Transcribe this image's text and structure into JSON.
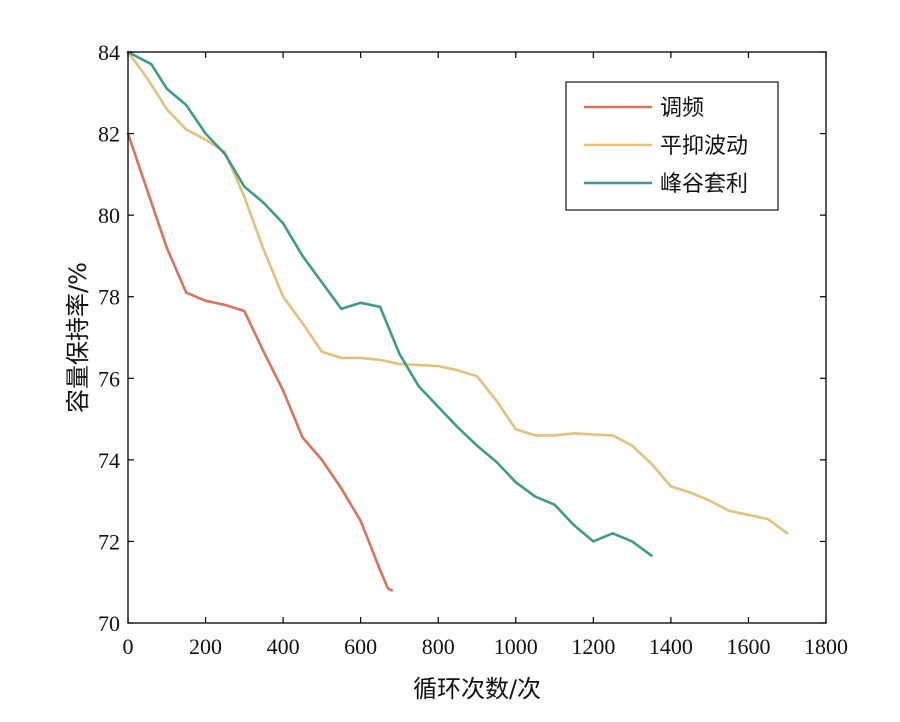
{
  "chart_data": {
    "type": "line",
    "title": "",
    "xlabel": "循环次数/次",
    "ylabel": "容量保持率/%",
    "xlim": [
      0,
      1800
    ],
    "ylim": [
      70,
      84
    ],
    "xticks": [
      0,
      200,
      400,
      600,
      800,
      1000,
      1200,
      1400,
      1600,
      1800
    ],
    "yticks": [
      70,
      72,
      74,
      76,
      78,
      80,
      82,
      84
    ],
    "grid": false,
    "legend_position": "top-right",
    "series": [
      {
        "name": "调频",
        "color": "#d8735e",
        "points": [
          [
            0,
            82.0
          ],
          [
            50,
            80.6
          ],
          [
            100,
            79.2
          ],
          [
            150,
            78.1
          ],
          [
            200,
            77.9
          ],
          [
            250,
            77.8
          ],
          [
            300,
            77.65
          ],
          [
            350,
            76.65
          ],
          [
            400,
            75.7
          ],
          [
            450,
            74.55
          ],
          [
            500,
            74.0
          ],
          [
            550,
            73.3
          ],
          [
            600,
            72.5
          ],
          [
            650,
            71.3
          ],
          [
            670,
            70.85
          ],
          [
            680,
            70.8
          ]
        ]
      },
      {
        "name": "平抑波动",
        "color": "#e3c07b",
        "points": [
          [
            0,
            84.0
          ],
          [
            50,
            83.35
          ],
          [
            100,
            82.6
          ],
          [
            150,
            82.1
          ],
          [
            200,
            81.85
          ],
          [
            250,
            81.55
          ],
          [
            300,
            80.45
          ],
          [
            350,
            79.15
          ],
          [
            400,
            78.0
          ],
          [
            450,
            77.35
          ],
          [
            500,
            76.65
          ],
          [
            550,
            76.5
          ],
          [
            600,
            76.5
          ],
          [
            650,
            76.45
          ],
          [
            700,
            76.35
          ],
          [
            800,
            76.3
          ],
          [
            850,
            76.2
          ],
          [
            900,
            76.05
          ],
          [
            950,
            75.45
          ],
          [
            1000,
            74.75
          ],
          [
            1050,
            74.6
          ],
          [
            1100,
            74.6
          ],
          [
            1150,
            74.65
          ],
          [
            1200,
            74.62
          ],
          [
            1250,
            74.6
          ],
          [
            1300,
            74.35
          ],
          [
            1350,
            73.9
          ],
          [
            1400,
            73.35
          ],
          [
            1450,
            73.2
          ],
          [
            1500,
            73.0
          ],
          [
            1550,
            72.75
          ],
          [
            1600,
            72.65
          ],
          [
            1650,
            72.55
          ],
          [
            1700,
            72.2
          ]
        ]
      },
      {
        "name": "峰谷套利",
        "color": "#3e9b8b",
        "points": [
          [
            0,
            84.0
          ],
          [
            60,
            83.7
          ],
          [
            100,
            83.1
          ],
          [
            150,
            82.7
          ],
          [
            200,
            82.0
          ],
          [
            250,
            81.5
          ],
          [
            300,
            80.7
          ],
          [
            350,
            80.3
          ],
          [
            400,
            79.8
          ],
          [
            450,
            79.0
          ],
          [
            500,
            78.35
          ],
          [
            550,
            77.7
          ],
          [
            600,
            77.85
          ],
          [
            650,
            77.75
          ],
          [
            700,
            76.6
          ],
          [
            750,
            75.8
          ],
          [
            800,
            75.3
          ],
          [
            850,
            74.8
          ],
          [
            900,
            74.35
          ],
          [
            950,
            73.95
          ],
          [
            1000,
            73.45
          ],
          [
            1050,
            73.1
          ],
          [
            1100,
            72.9
          ],
          [
            1150,
            72.4
          ],
          [
            1200,
            72.0
          ],
          [
            1250,
            72.2
          ],
          [
            1300,
            72.0
          ],
          [
            1350,
            71.65
          ]
        ]
      }
    ]
  }
}
